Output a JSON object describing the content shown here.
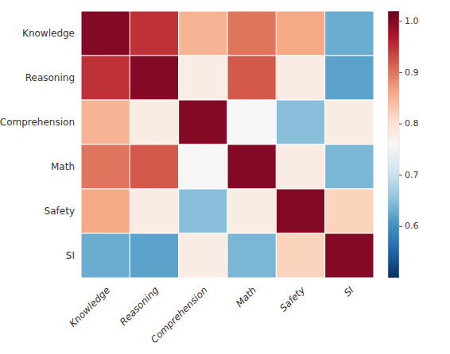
{
  "chart_data": {
    "type": "heatmap",
    "categories": [
      "Knowledge",
      "Reasoning",
      "Comprehension",
      "Math",
      "Safety",
      "SI"
    ],
    "matrix": [
      [
        1.0,
        0.95,
        0.85,
        0.9,
        0.86,
        0.63
      ],
      [
        0.95,
        1.0,
        0.78,
        0.92,
        0.78,
        0.62
      ],
      [
        0.85,
        0.78,
        1.0,
        0.76,
        0.65,
        0.78
      ],
      [
        0.9,
        0.92,
        0.76,
        1.0,
        0.78,
        0.64
      ],
      [
        0.86,
        0.78,
        0.65,
        0.78,
        1.0,
        0.82
      ],
      [
        0.63,
        0.62,
        0.78,
        0.64,
        0.82,
        1.0
      ]
    ],
    "color_range": [
      0.5,
      1.02
    ],
    "color_center": 0.76,
    "color_ticks": [
      0.6,
      0.7,
      0.8,
      0.9,
      {
        "value": 1.0,
        "label": "1.0"
      }
    ],
    "colors": [
      "#053061",
      "#2166ac",
      "#4393c3",
      "#92c5de",
      "#d1e5f0",
      "#f7f7f7",
      "#fddbc7",
      "#f4a582",
      "#d6604d",
      "#b2182b",
      "#67001f"
    ]
  }
}
